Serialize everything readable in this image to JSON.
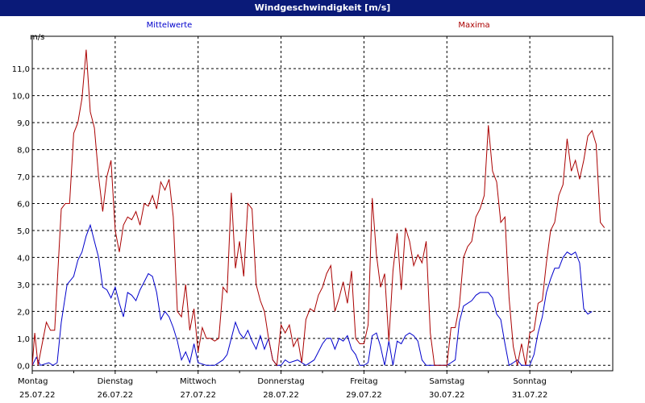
{
  "chart_data": {
    "type": "line",
    "title": "Windgeschwindigkeit [m/s]",
    "ylabel": "m/s",
    "ylim": [
      -0.2,
      12.2
    ],
    "yticks": [
      "0,0",
      "1,0",
      "2,0",
      "3,0",
      "4,0",
      "5,0",
      "6,0",
      "7,0",
      "8,0",
      "9,0",
      "10,0",
      "11,0"
    ],
    "xlim": [
      0,
      7
    ],
    "grid": true,
    "legend_placement": "top",
    "days": [
      {
        "weekday": "Montag",
        "date": "25.07.22"
      },
      {
        "weekday": "Dienstag",
        "date": "26.07.22"
      },
      {
        "weekday": "Mittwoch",
        "date": "27.07.22"
      },
      {
        "weekday": "Donnerstag",
        "date": "28.07.22"
      },
      {
        "weekday": "Freitag",
        "date": "29.07.22"
      },
      {
        "weekday": "Samstag",
        "date": "30.07.22"
      },
      {
        "weekday": "Sonntag",
        "date": "31.07.22"
      }
    ],
    "series": [
      {
        "name": "Mittelwerte",
        "color": "#0000cc",
        "points": [
          [
            0.0,
            0.0
          ],
          [
            0.05,
            0.3
          ],
          [
            0.1,
            0.0
          ],
          [
            0.2,
            0.1
          ],
          [
            0.25,
            0.0
          ],
          [
            0.3,
            0.1
          ],
          [
            0.35,
            1.6
          ],
          [
            0.42,
            3.0
          ],
          [
            0.5,
            3.3
          ],
          [
            0.55,
            3.9
          ],
          [
            0.6,
            4.2
          ],
          [
            0.65,
            4.8
          ],
          [
            0.7,
            5.2
          ],
          [
            0.75,
            4.6
          ],
          [
            0.8,
            4.0
          ],
          [
            0.85,
            2.9
          ],
          [
            0.9,
            2.8
          ],
          [
            0.95,
            2.5
          ],
          [
            1.0,
            2.9
          ],
          [
            1.05,
            2.3
          ],
          [
            1.1,
            1.8
          ],
          [
            1.15,
            2.7
          ],
          [
            1.2,
            2.6
          ],
          [
            1.25,
            2.4
          ],
          [
            1.3,
            2.8
          ],
          [
            1.35,
            3.1
          ],
          [
            1.4,
            3.4
          ],
          [
            1.45,
            3.3
          ],
          [
            1.5,
            2.7
          ],
          [
            1.55,
            1.7
          ],
          [
            1.6,
            2.0
          ],
          [
            1.65,
            1.8
          ],
          [
            1.7,
            1.4
          ],
          [
            1.75,
            0.9
          ],
          [
            1.8,
            0.2
          ],
          [
            1.85,
            0.5
          ],
          [
            1.9,
            0.1
          ],
          [
            1.95,
            0.8
          ],
          [
            2.0,
            0.1
          ],
          [
            2.1,
            0.0
          ],
          [
            2.2,
            0.0
          ],
          [
            2.3,
            0.2
          ],
          [
            2.35,
            0.4
          ],
          [
            2.4,
            1.0
          ],
          [
            2.45,
            1.6
          ],
          [
            2.5,
            1.2
          ],
          [
            2.55,
            1.0
          ],
          [
            2.6,
            1.3
          ],
          [
            2.65,
            0.9
          ],
          [
            2.7,
            0.6
          ],
          [
            2.75,
            1.1
          ],
          [
            2.8,
            0.6
          ],
          [
            2.85,
            1.0
          ],
          [
            2.9,
            0.2
          ],
          [
            2.95,
            0.0
          ],
          [
            3.0,
            0.0
          ],
          [
            3.05,
            0.2
          ],
          [
            3.1,
            0.1
          ],
          [
            3.2,
            0.2
          ],
          [
            3.3,
            0.0
          ],
          [
            3.4,
            0.2
          ],
          [
            3.5,
            0.8
          ],
          [
            3.55,
            1.0
          ],
          [
            3.6,
            1.0
          ],
          [
            3.65,
            0.6
          ],
          [
            3.7,
            1.0
          ],
          [
            3.75,
            0.9
          ],
          [
            3.8,
            1.1
          ],
          [
            3.85,
            0.6
          ],
          [
            3.9,
            0.4
          ],
          [
            3.95,
            0.0
          ],
          [
            4.0,
            0.0
          ],
          [
            4.05,
            0.1
          ],
          [
            4.1,
            1.1
          ],
          [
            4.15,
            1.2
          ],
          [
            4.2,
            0.7
          ],
          [
            4.25,
            0.0
          ],
          [
            4.3,
            0.9
          ],
          [
            4.35,
            0.0
          ],
          [
            4.4,
            0.9
          ],
          [
            4.45,
            0.8
          ],
          [
            4.5,
            1.1
          ],
          [
            4.55,
            1.2
          ],
          [
            4.6,
            1.1
          ],
          [
            4.65,
            0.9
          ],
          [
            4.7,
            0.2
          ],
          [
            4.75,
            0.0
          ],
          [
            4.9,
            0.0
          ],
          [
            5.0,
            0.0
          ],
          [
            5.05,
            0.1
          ],
          [
            5.1,
            0.2
          ],
          [
            5.15,
            1.6
          ],
          [
            5.2,
            2.2
          ],
          [
            5.3,
            2.4
          ],
          [
            5.35,
            2.6
          ],
          [
            5.4,
            2.7
          ],
          [
            5.5,
            2.7
          ],
          [
            5.55,
            2.5
          ],
          [
            5.6,
            1.9
          ],
          [
            5.65,
            1.7
          ],
          [
            5.7,
            0.8
          ],
          [
            5.75,
            0.0
          ],
          [
            5.8,
            0.1
          ],
          [
            5.85,
            0.2
          ],
          [
            5.9,
            0.0
          ],
          [
            6.0,
            0.0
          ],
          [
            6.05,
            0.4
          ],
          [
            6.1,
            1.2
          ],
          [
            6.15,
            1.8
          ],
          [
            6.2,
            2.7
          ],
          [
            6.25,
            3.2
          ],
          [
            6.3,
            3.6
          ],
          [
            6.35,
            3.6
          ],
          [
            6.4,
            4.0
          ],
          [
            6.45,
            4.2
          ],
          [
            6.5,
            4.1
          ],
          [
            6.55,
            4.2
          ],
          [
            6.6,
            3.8
          ],
          [
            6.65,
            2.1
          ],
          [
            6.7,
            1.9
          ],
          [
            6.75,
            2.0
          ]
        ]
      },
      {
        "name": "Maxima",
        "color": "#aa0000",
        "points": [
          [
            0.0,
            0.0
          ],
          [
            0.03,
            1.2
          ],
          [
            0.07,
            0.0
          ],
          [
            0.12,
            0.8
          ],
          [
            0.17,
            1.6
          ],
          [
            0.22,
            1.3
          ],
          [
            0.27,
            1.3
          ],
          [
            0.3,
            3.0
          ],
          [
            0.35,
            5.8
          ],
          [
            0.4,
            6.0
          ],
          [
            0.45,
            6.0
          ],
          [
            0.5,
            8.6
          ],
          [
            0.55,
            9.0
          ],
          [
            0.6,
            9.9
          ],
          [
            0.65,
            11.7
          ],
          [
            0.7,
            9.4
          ],
          [
            0.75,
            8.8
          ],
          [
            0.8,
            7.0
          ],
          [
            0.85,
            5.7
          ],
          [
            0.9,
            7.0
          ],
          [
            0.95,
            7.6
          ],
          [
            1.0,
            5.0
          ],
          [
            1.05,
            4.2
          ],
          [
            1.1,
            5.2
          ],
          [
            1.15,
            5.5
          ],
          [
            1.2,
            5.4
          ],
          [
            1.25,
            5.7
          ],
          [
            1.3,
            5.2
          ],
          [
            1.35,
            6.0
          ],
          [
            1.4,
            5.9
          ],
          [
            1.45,
            6.3
          ],
          [
            1.5,
            5.8
          ],
          [
            1.55,
            6.8
          ],
          [
            1.6,
            6.5
          ],
          [
            1.65,
            6.9
          ],
          [
            1.7,
            5.5
          ],
          [
            1.75,
            2.0
          ],
          [
            1.8,
            1.8
          ],
          [
            1.85,
            3.0
          ],
          [
            1.9,
            1.3
          ],
          [
            1.95,
            2.1
          ],
          [
            2.0,
            0.5
          ],
          [
            2.05,
            1.4
          ],
          [
            2.1,
            1.0
          ],
          [
            2.15,
            1.0
          ],
          [
            2.2,
            0.9
          ],
          [
            2.25,
            1.0
          ],
          [
            2.3,
            2.9
          ],
          [
            2.35,
            2.7
          ],
          [
            2.4,
            6.4
          ],
          [
            2.45,
            3.6
          ],
          [
            2.5,
            4.6
          ],
          [
            2.55,
            3.3
          ],
          [
            2.6,
            6.0
          ],
          [
            2.65,
            5.8
          ],
          [
            2.7,
            3.0
          ],
          [
            2.75,
            2.4
          ],
          [
            2.8,
            2.0
          ],
          [
            2.85,
            1.0
          ],
          [
            2.9,
            0.2
          ],
          [
            2.95,
            0.0
          ],
          [
            3.0,
            1.5
          ],
          [
            3.05,
            1.2
          ],
          [
            3.1,
            1.5
          ],
          [
            3.15,
            0.7
          ],
          [
            3.2,
            1.0
          ],
          [
            3.25,
            0.1
          ],
          [
            3.3,
            1.7
          ],
          [
            3.35,
            2.1
          ],
          [
            3.4,
            2.0
          ],
          [
            3.45,
            2.6
          ],
          [
            3.5,
            2.9
          ],
          [
            3.55,
            3.4
          ],
          [
            3.6,
            3.7
          ],
          [
            3.65,
            2.0
          ],
          [
            3.7,
            2.5
          ],
          [
            3.75,
            3.1
          ],
          [
            3.8,
            2.3
          ],
          [
            3.85,
            3.5
          ],
          [
            3.9,
            1.0
          ],
          [
            3.95,
            0.8
          ],
          [
            4.0,
            0.8
          ],
          [
            4.05,
            1.5
          ],
          [
            4.1,
            6.2
          ],
          [
            4.15,
            4.1
          ],
          [
            4.2,
            2.9
          ],
          [
            4.25,
            3.4
          ],
          [
            4.3,
            0.9
          ],
          [
            4.35,
            3.5
          ],
          [
            4.4,
            4.9
          ],
          [
            4.45,
            2.8
          ],
          [
            4.5,
            5.1
          ],
          [
            4.55,
            4.6
          ],
          [
            4.6,
            3.7
          ],
          [
            4.65,
            4.1
          ],
          [
            4.7,
            3.8
          ],
          [
            4.75,
            4.6
          ],
          [
            4.8,
            1.2
          ],
          [
            4.85,
            0.0
          ],
          [
            5.0,
            0.0
          ],
          [
            5.05,
            1.4
          ],
          [
            5.1,
            1.4
          ],
          [
            5.15,
            2.2
          ],
          [
            5.2,
            4.0
          ],
          [
            5.25,
            4.4
          ],
          [
            5.3,
            4.6
          ],
          [
            5.35,
            5.5
          ],
          [
            5.4,
            5.8
          ],
          [
            5.45,
            6.3
          ],
          [
            5.5,
            8.9
          ],
          [
            5.55,
            7.2
          ],
          [
            5.6,
            6.8
          ],
          [
            5.65,
            5.3
          ],
          [
            5.7,
            5.5
          ],
          [
            5.75,
            2.5
          ],
          [
            5.8,
            0.7
          ],
          [
            5.85,
            0.0
          ],
          [
            5.9,
            0.8
          ],
          [
            5.95,
            0.0
          ],
          [
            6.0,
            1.2
          ],
          [
            6.05,
            1.3
          ],
          [
            6.1,
            2.3
          ],
          [
            6.15,
            2.4
          ],
          [
            6.2,
            3.8
          ],
          [
            6.25,
            5.0
          ],
          [
            6.3,
            5.3
          ],
          [
            6.35,
            6.3
          ],
          [
            6.4,
            6.7
          ],
          [
            6.45,
            8.4
          ],
          [
            6.5,
            7.2
          ],
          [
            6.55,
            7.6
          ],
          [
            6.6,
            6.9
          ],
          [
            6.65,
            7.6
          ],
          [
            6.7,
            8.5
          ],
          [
            6.75,
            8.7
          ],
          [
            6.8,
            8.2
          ],
          [
            6.85,
            5.3
          ],
          [
            6.9,
            5.1
          ]
        ]
      }
    ]
  }
}
